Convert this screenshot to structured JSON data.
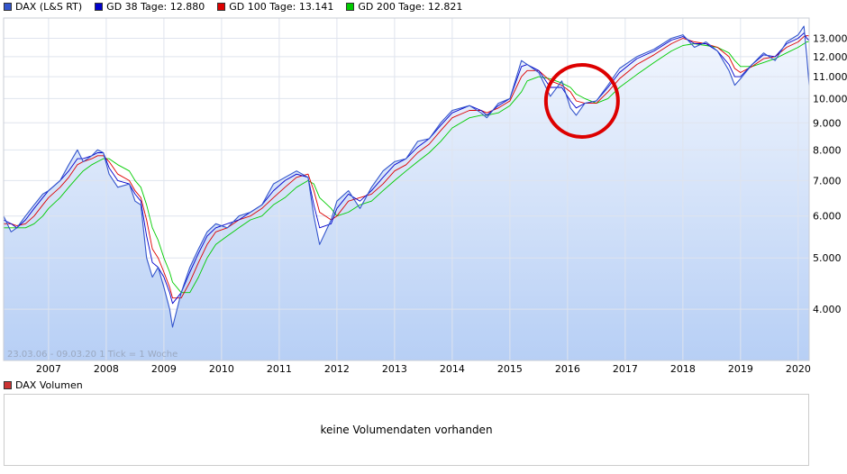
{
  "legend": [
    {
      "label": "DAX (L&S RT)",
      "color": "#3355cc"
    },
    {
      "label": "GD 38 Tage: 12.880",
      "color": "#0000cc"
    },
    {
      "label": "GD 100 Tage: 13.141",
      "color": "#dd0000"
    },
    {
      "label": "GD 200 Tage: 12.821",
      "color": "#00cc00"
    }
  ],
  "info": {
    "range": "23.03.06 - 09.03.20",
    "tick": "1 Tick = 1 Woche"
  },
  "volume": {
    "legend_label": "DAX Volumen",
    "legend_color": "#cc3333",
    "message": "keine Volumendaten vorhanden"
  },
  "annotation": {
    "type": "circle",
    "color": "#dd0000",
    "center": [
      2016.25,
      9900
    ]
  },
  "chart_data": {
    "type": "line",
    "scale": "log",
    "xlim": [
      2006.22,
      2020.19
    ],
    "ylim": [
      3200,
      14200
    ],
    "grid": true,
    "x_ticks": [
      {
        "value": 2007,
        "label": "2007"
      },
      {
        "value": 2008,
        "label": "2008"
      },
      {
        "value": 2009,
        "label": "2009"
      },
      {
        "value": 2010,
        "label": "2010"
      },
      {
        "value": 2011,
        "label": "2011"
      },
      {
        "value": 2012,
        "label": "2012"
      },
      {
        "value": 2013,
        "label": "2013"
      },
      {
        "value": 2014,
        "label": "2014"
      },
      {
        "value": 2015,
        "label": "2015"
      },
      {
        "value": 2016,
        "label": "2016"
      },
      {
        "value": 2017,
        "label": "2017"
      },
      {
        "value": 2018,
        "label": "2018"
      },
      {
        "value": 2019,
        "label": "2019"
      },
      {
        "value": 2020,
        "label": "2020"
      }
    ],
    "y_ticks": [
      {
        "value": 4000,
        "label": "4.000"
      },
      {
        "value": 5000,
        "label": "5.000"
      },
      {
        "value": 6000,
        "label": "6.000"
      },
      {
        "value": 7000,
        "label": "7.000"
      },
      {
        "value": 8000,
        "label": "8.000"
      },
      {
        "value": 9000,
        "label": "9.000"
      },
      {
        "value": 10000,
        "label": "10.000"
      },
      {
        "value": 11000,
        "label": "11.000"
      },
      {
        "value": 12000,
        "label": "12.000"
      },
      {
        "value": 13000,
        "label": "13.000"
      }
    ],
    "x": [
      2006.22,
      2006.35,
      2006.45,
      2006.6,
      2006.75,
      2006.9,
      2007.0,
      2007.2,
      2007.35,
      2007.5,
      2007.6,
      2007.75,
      2007.85,
      2007.95,
      2008.05,
      2008.2,
      2008.4,
      2008.5,
      2008.6,
      2008.7,
      2008.8,
      2008.9,
      2009.0,
      2009.1,
      2009.15,
      2009.3,
      2009.45,
      2009.6,
      2009.75,
      2009.9,
      2010.1,
      2010.3,
      2010.5,
      2010.7,
      2010.9,
      2011.1,
      2011.3,
      2011.5,
      2011.6,
      2011.7,
      2011.9,
      2012.0,
      2012.2,
      2012.4,
      2012.6,
      2012.8,
      2013.0,
      2013.2,
      2013.4,
      2013.6,
      2013.8,
      2014.0,
      2014.3,
      2014.5,
      2014.6,
      2014.8,
      2015.0,
      2015.2,
      2015.3,
      2015.5,
      2015.7,
      2015.9,
      2016.05,
      2016.15,
      2016.3,
      2016.5,
      2016.7,
      2016.9,
      2017.2,
      2017.5,
      2017.8,
      2018.0,
      2018.2,
      2018.4,
      2018.6,
      2018.8,
      2018.9,
      2019.0,
      2019.2,
      2019.4,
      2019.6,
      2019.8,
      2020.0,
      2020.1,
      2020.15,
      2020.19
    ],
    "series": [
      {
        "name": "DAX (L&S RT)",
        "color": "#3355cc",
        "width": 1.1,
        "values": [
          6000,
          5600,
          5700,
          6000,
          6300,
          6600,
          6700,
          7000,
          7500,
          8000,
          7600,
          7800,
          8000,
          7900,
          7200,
          6800,
          6900,
          6400,
          6300,
          5000,
          4600,
          4800,
          4400,
          4000,
          3700,
          4300,
          4800,
          5200,
          5600,
          5800,
          5700,
          6000,
          6100,
          6300,
          6900,
          7100,
          7300,
          7100,
          6000,
          5300,
          5900,
          6400,
          6700,
          6200,
          6800,
          7300,
          7600,
          7700,
          8300,
          8400,
          9000,
          9500,
          9700,
          9400,
          9200,
          9800,
          10000,
          11800,
          11600,
          11200,
          10100,
          10800,
          9600,
          9300,
          9800,
          9900,
          10600,
          11400,
          12000,
          12400,
          13000,
          13200,
          12500,
          12800,
          12300,
          11300,
          10600,
          10900,
          11600,
          12200,
          11800,
          12800,
          13200,
          13700,
          12000,
          10600
        ]
      },
      {
        "name": "GD 38 Tage: 12.880",
        "color": "#0000cc",
        "width": 0.9,
        "values": [
          5900,
          5800,
          5700,
          5900,
          6200,
          6500,
          6700,
          7000,
          7300,
          7700,
          7700,
          7800,
          7900,
          7900,
          7400,
          7000,
          6900,
          6600,
          6400,
          5500,
          4900,
          4800,
          4600,
          4300,
          4100,
          4300,
          4700,
          5100,
          5500,
          5700,
          5800,
          5900,
          6100,
          6300,
          6700,
          7000,
          7200,
          7100,
          6300,
          5700,
          5800,
          6200,
          6600,
          6400,
          6700,
          7100,
          7500,
          7700,
          8100,
          8400,
          8900,
          9400,
          9700,
          9500,
          9300,
          9700,
          10000,
          11500,
          11600,
          11300,
          10500,
          10500,
          9900,
          9600,
          9800,
          9900,
          10500,
          11200,
          11900,
          12300,
          12900,
          13100,
          12700,
          12700,
          12300,
          11600,
          11000,
          11000,
          11600,
          12100,
          12000,
          12700,
          13000,
          13300,
          13000,
          12880
        ]
      },
      {
        "name": "GD 100 Tage: 13.141",
        "color": "#dd0000",
        "width": 0.9,
        "values": [
          5800,
          5800,
          5750,
          5800,
          6000,
          6300,
          6500,
          6800,
          7100,
          7500,
          7600,
          7700,
          7800,
          7800,
          7600,
          7200,
          7000,
          6700,
          6500,
          5900,
          5200,
          5000,
          4700,
          4400,
          4200,
          4200,
          4500,
          4900,
          5300,
          5600,
          5700,
          5900,
          6000,
          6200,
          6500,
          6800,
          7100,
          7200,
          6700,
          6100,
          5900,
          6000,
          6400,
          6500,
          6600,
          6900,
          7300,
          7500,
          7900,
          8200,
          8700,
          9200,
          9500,
          9500,
          9400,
          9600,
          9900,
          11000,
          11300,
          11300,
          10800,
          10600,
          10300,
          9900,
          9800,
          9800,
          10300,
          10900,
          11600,
          12100,
          12700,
          13000,
          12800,
          12700,
          12500,
          12000,
          11400,
          11200,
          11500,
          11900,
          12000,
          12500,
          12800,
          13100,
          13150,
          13141
        ]
      },
      {
        "name": "GD 200 Tage: 12.821",
        "color": "#00cc00",
        "width": 0.9,
        "values": [
          5700,
          5700,
          5700,
          5700,
          5800,
          6000,
          6200,
          6500,
          6800,
          7100,
          7300,
          7500,
          7600,
          7700,
          7700,
          7500,
          7300,
          7000,
          6800,
          6300,
          5700,
          5400,
          5000,
          4700,
          4500,
          4300,
          4300,
          4600,
          5000,
          5300,
          5500,
          5700,
          5900,
          6000,
          6300,
          6500,
          6800,
          7000,
          6900,
          6500,
          6200,
          6000,
          6100,
          6300,
          6400,
          6700,
          7000,
          7300,
          7600,
          7900,
          8300,
          8800,
          9200,
          9300,
          9300,
          9400,
          9700,
          10300,
          10800,
          11000,
          10900,
          10700,
          10500,
          10200,
          10000,
          9800,
          10000,
          10500,
          11100,
          11700,
          12300,
          12600,
          12700,
          12600,
          12500,
          12200,
          11800,
          11500,
          11500,
          11700,
          11900,
          12200,
          12500,
          12700,
          12800,
          12821
        ]
      }
    ]
  }
}
